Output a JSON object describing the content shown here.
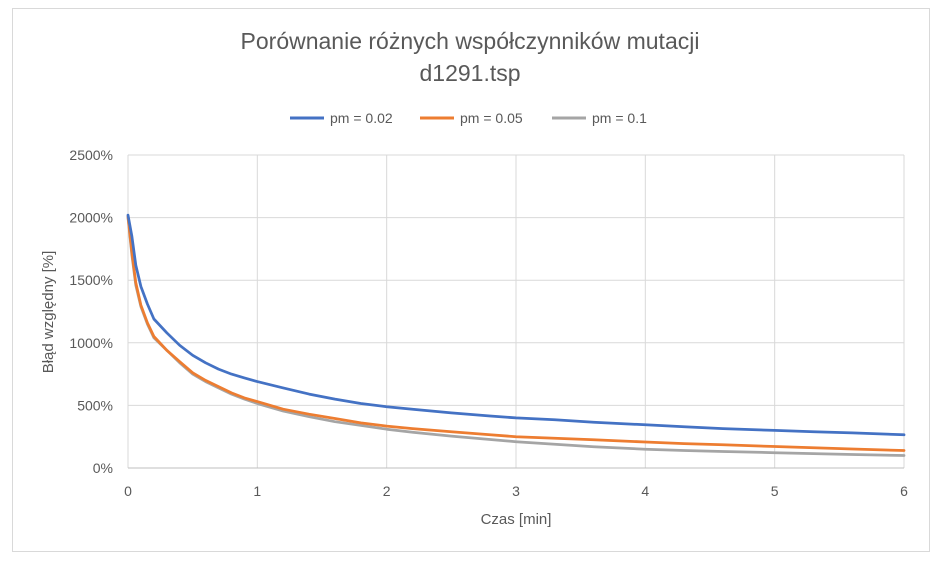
{
  "chart_data": {
    "type": "line",
    "title": "Porównanie różnych współczynników mutacji",
    "subtitle": "d1291.tsp",
    "xlabel": "Czas [min]",
    "ylabel": "Błąd względny [%]",
    "xlim": [
      0,
      6
    ],
    "ylim": [
      0,
      2500
    ],
    "x_ticks": [
      "0",
      "1",
      "2",
      "3",
      "4",
      "5",
      "6"
    ],
    "y_ticks": [
      "0%",
      "500%",
      "1000%",
      "1500%",
      "2000%",
      "2500%"
    ],
    "grid": true,
    "legend_position": "top",
    "series": [
      {
        "name": "pm = 0.02",
        "color": "#4472c4",
        "points": [
          [
            0,
            2020
          ],
          [
            0.03,
            1850
          ],
          [
            0.06,
            1620
          ],
          [
            0.1,
            1450
          ],
          [
            0.15,
            1310
          ],
          [
            0.2,
            1190
          ],
          [
            0.3,
            1080
          ],
          [
            0.4,
            980
          ],
          [
            0.5,
            900
          ],
          [
            0.6,
            840
          ],
          [
            0.7,
            790
          ],
          [
            0.8,
            750
          ],
          [
            0.9,
            720
          ],
          [
            1.0,
            690
          ],
          [
            1.2,
            640
          ],
          [
            1.4,
            590
          ],
          [
            1.6,
            550
          ],
          [
            1.8,
            515
          ],
          [
            2.0,
            490
          ],
          [
            2.2,
            470
          ],
          [
            2.5,
            440
          ],
          [
            2.8,
            415
          ],
          [
            3.0,
            400
          ],
          [
            3.3,
            385
          ],
          [
            3.6,
            365
          ],
          [
            4.0,
            345
          ],
          [
            4.3,
            330
          ],
          [
            4.6,
            315
          ],
          [
            5.0,
            300
          ],
          [
            5.3,
            290
          ],
          [
            5.6,
            280
          ],
          [
            6.0,
            265
          ]
        ]
      },
      {
        "name": "pm = 0.05",
        "color": "#ed7d31",
        "points": [
          [
            0,
            2010
          ],
          [
            0.03,
            1720
          ],
          [
            0.06,
            1480
          ],
          [
            0.1,
            1300
          ],
          [
            0.15,
            1160
          ],
          [
            0.2,
            1050
          ],
          [
            0.3,
            940
          ],
          [
            0.4,
            850
          ],
          [
            0.5,
            760
          ],
          [
            0.6,
            700
          ],
          [
            0.7,
            650
          ],
          [
            0.8,
            600
          ],
          [
            0.9,
            560
          ],
          [
            1.0,
            530
          ],
          [
            1.2,
            470
          ],
          [
            1.4,
            430
          ],
          [
            1.6,
            395
          ],
          [
            1.8,
            360
          ],
          [
            2.0,
            335
          ],
          [
            2.2,
            315
          ],
          [
            2.5,
            290
          ],
          [
            2.8,
            265
          ],
          [
            3.0,
            250
          ],
          [
            3.3,
            238
          ],
          [
            3.6,
            225
          ],
          [
            4.0,
            208
          ],
          [
            4.3,
            195
          ],
          [
            4.6,
            185
          ],
          [
            5.0,
            172
          ],
          [
            5.3,
            162
          ],
          [
            5.6,
            152
          ],
          [
            6.0,
            140
          ]
        ]
      },
      {
        "name": "pm = 0.1",
        "color": "#a5a5a5",
        "points": [
          [
            0,
            2000
          ],
          [
            0.03,
            1700
          ],
          [
            0.06,
            1460
          ],
          [
            0.1,
            1290
          ],
          [
            0.15,
            1150
          ],
          [
            0.2,
            1040
          ],
          [
            0.3,
            940
          ],
          [
            0.4,
            840
          ],
          [
            0.5,
            750
          ],
          [
            0.6,
            690
          ],
          [
            0.7,
            640
          ],
          [
            0.8,
            590
          ],
          [
            0.9,
            550
          ],
          [
            1.0,
            515
          ],
          [
            1.2,
            455
          ],
          [
            1.4,
            410
          ],
          [
            1.6,
            370
          ],
          [
            1.8,
            340
          ],
          [
            2.0,
            310
          ],
          [
            2.2,
            285
          ],
          [
            2.5,
            255
          ],
          [
            2.8,
            228
          ],
          [
            3.0,
            210
          ],
          [
            3.3,
            190
          ],
          [
            3.6,
            170
          ],
          [
            4.0,
            150
          ],
          [
            4.3,
            140
          ],
          [
            4.6,
            132
          ],
          [
            5.0,
            122
          ],
          [
            5.3,
            115
          ],
          [
            5.6,
            108
          ],
          [
            6.0,
            100
          ]
        ]
      }
    ]
  }
}
